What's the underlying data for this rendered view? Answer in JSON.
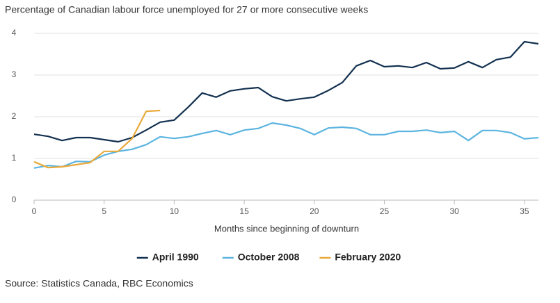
{
  "chart_data": {
    "type": "line",
    "title": "Percentage of Canadian labour force unemployed for 27 or more consecutive weeks",
    "x_label": "Months since beginning of downturn",
    "source": "Source: Statistics Canada, RBC Economics",
    "x": [
      0,
      1,
      2,
      3,
      4,
      5,
      6,
      7,
      8,
      9,
      10,
      11,
      12,
      13,
      14,
      15,
      16,
      17,
      18,
      19,
      20,
      21,
      22,
      23,
      24,
      25,
      26,
      27,
      28,
      29,
      30,
      31,
      32,
      33,
      34,
      35,
      36
    ],
    "xlim": [
      0,
      36
    ],
    "xticks": [
      0,
      5,
      10,
      15,
      20,
      25,
      30,
      35
    ],
    "ylim": [
      0,
      4
    ],
    "yticks": [
      0,
      1,
      2,
      3,
      4
    ],
    "grid": true,
    "series": [
      {
        "name": "April 1990",
        "color": "#12304f",
        "values": [
          1.58,
          1.53,
          1.43,
          1.5,
          1.5,
          1.45,
          1.4,
          1.5,
          1.68,
          1.87,
          1.92,
          2.23,
          2.57,
          2.47,
          2.62,
          2.67,
          2.7,
          2.48,
          2.38,
          2.43,
          2.47,
          2.63,
          2.82,
          3.22,
          3.35,
          3.2,
          3.22,
          3.18,
          3.3,
          3.15,
          3.17,
          3.32,
          3.18,
          3.37,
          3.43,
          3.8,
          3.75
        ]
      },
      {
        "name": "October 2008",
        "color": "#5bb4e0",
        "values": [
          0.77,
          0.83,
          0.8,
          0.93,
          0.92,
          1.08,
          1.17,
          1.22,
          1.33,
          1.52,
          1.48,
          1.52,
          1.6,
          1.67,
          1.57,
          1.68,
          1.72,
          1.85,
          1.8,
          1.72,
          1.57,
          1.73,
          1.75,
          1.72,
          1.57,
          1.57,
          1.65,
          1.65,
          1.68,
          1.62,
          1.65,
          1.43,
          1.67,
          1.67,
          1.62,
          1.47,
          1.5
        ]
      },
      {
        "name": "February 2020",
        "color": "#e8a93a",
        "values": [
          0.92,
          0.78,
          0.8,
          0.85,
          0.9,
          1.17,
          1.17,
          1.48,
          2.13,
          2.15,
          null,
          null,
          null,
          null,
          null,
          null,
          null,
          null,
          null,
          null,
          null,
          null,
          null,
          null,
          null,
          null,
          null,
          null,
          null,
          null,
          null,
          null,
          null,
          null,
          null,
          null,
          null
        ]
      }
    ]
  }
}
